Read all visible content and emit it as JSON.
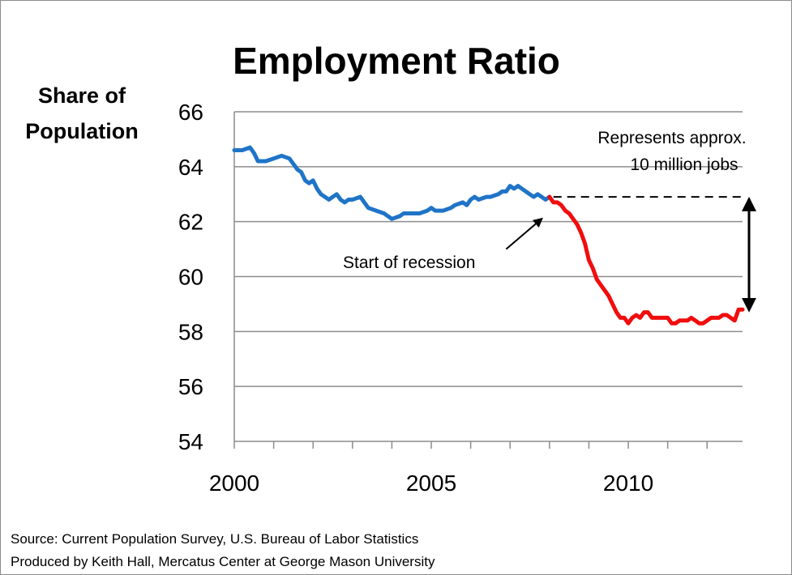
{
  "chart_data": {
    "type": "line",
    "title": "Employment Ratio",
    "ylabel_lines": [
      "Share of",
      "Population"
    ],
    "xlabel": "",
    "ylim": [
      54,
      66
    ],
    "xlim": [
      2000,
      2012.9
    ],
    "yticks": [
      "54",
      "56",
      "58",
      "60",
      "62",
      "64",
      "66"
    ],
    "xticks": [
      "2000",
      "2005",
      "2010"
    ],
    "grid": true,
    "legend": "none",
    "series": [
      {
        "color": "#1f74c7",
        "points": [
          [
            2000.0,
            64.6
          ],
          [
            2000.2,
            64.6
          ],
          [
            2000.4,
            64.7
          ],
          [
            2000.5,
            64.5
          ],
          [
            2000.6,
            64.2
          ],
          [
            2000.8,
            64.2
          ],
          [
            2001.0,
            64.3
          ],
          [
            2001.2,
            64.4
          ],
          [
            2001.4,
            64.3
          ],
          [
            2001.6,
            63.9
          ],
          [
            2001.7,
            63.8
          ],
          [
            2001.8,
            63.5
          ],
          [
            2001.9,
            63.4
          ],
          [
            2002.0,
            63.5
          ],
          [
            2002.1,
            63.2
          ],
          [
            2002.2,
            63.0
          ],
          [
            2002.3,
            62.9
          ],
          [
            2002.4,
            62.8
          ],
          [
            2002.5,
            62.9
          ],
          [
            2002.6,
            63.0
          ],
          [
            2002.7,
            62.8
          ],
          [
            2002.8,
            62.7
          ],
          [
            2002.9,
            62.8
          ],
          [
            2003.0,
            62.8
          ],
          [
            2003.2,
            62.9
          ],
          [
            2003.3,
            62.7
          ],
          [
            2003.4,
            62.5
          ],
          [
            2003.6,
            62.4
          ],
          [
            2003.8,
            62.3
          ],
          [
            2003.9,
            62.2
          ],
          [
            2004.0,
            62.1
          ],
          [
            2004.2,
            62.2
          ],
          [
            2004.3,
            62.3
          ],
          [
            2004.5,
            62.3
          ],
          [
            2004.7,
            62.3
          ],
          [
            2004.9,
            62.4
          ],
          [
            2005.0,
            62.5
          ],
          [
            2005.1,
            62.4
          ],
          [
            2005.3,
            62.4
          ],
          [
            2005.5,
            62.5
          ],
          [
            2005.6,
            62.6
          ],
          [
            2005.8,
            62.7
          ],
          [
            2005.9,
            62.6
          ],
          [
            2006.0,
            62.8
          ],
          [
            2006.1,
            62.9
          ],
          [
            2006.2,
            62.8
          ],
          [
            2006.4,
            62.9
          ],
          [
            2006.5,
            62.9
          ],
          [
            2006.7,
            63.0
          ],
          [
            2006.8,
            63.1
          ],
          [
            2006.9,
            63.1
          ],
          [
            2007.0,
            63.3
          ],
          [
            2007.1,
            63.2
          ],
          [
            2007.2,
            63.3
          ],
          [
            2007.3,
            63.2
          ],
          [
            2007.4,
            63.1
          ],
          [
            2007.5,
            63.0
          ],
          [
            2007.6,
            62.9
          ],
          [
            2007.7,
            63.0
          ],
          [
            2007.8,
            62.9
          ],
          [
            2007.9,
            62.8
          ],
          [
            2008.0,
            62.9
          ]
        ]
      },
      {
        "color": "#f10d0d",
        "points": [
          [
            2008.0,
            62.9
          ],
          [
            2008.1,
            62.7
          ],
          [
            2008.2,
            62.7
          ],
          [
            2008.3,
            62.6
          ],
          [
            2008.4,
            62.4
          ],
          [
            2008.5,
            62.3
          ],
          [
            2008.6,
            62.1
          ],
          [
            2008.7,
            61.9
          ],
          [
            2008.8,
            61.6
          ],
          [
            2008.9,
            61.2
          ],
          [
            2009.0,
            60.6
          ],
          [
            2009.1,
            60.3
          ],
          [
            2009.2,
            59.9
          ],
          [
            2009.3,
            59.7
          ],
          [
            2009.4,
            59.5
          ],
          [
            2009.5,
            59.3
          ],
          [
            2009.6,
            59.0
          ],
          [
            2009.7,
            58.7
          ],
          [
            2009.8,
            58.5
          ],
          [
            2009.9,
            58.5
          ],
          [
            2010.0,
            58.3
          ],
          [
            2010.1,
            58.5
          ],
          [
            2010.2,
            58.6
          ],
          [
            2010.3,
            58.5
          ],
          [
            2010.4,
            58.7
          ],
          [
            2010.5,
            58.7
          ],
          [
            2010.6,
            58.5
          ],
          [
            2010.8,
            58.5
          ],
          [
            2011.0,
            58.5
          ],
          [
            2011.1,
            58.3
          ],
          [
            2011.2,
            58.3
          ],
          [
            2011.3,
            58.4
          ],
          [
            2011.5,
            58.4
          ],
          [
            2011.6,
            58.5
          ],
          [
            2011.7,
            58.4
          ],
          [
            2011.8,
            58.3
          ],
          [
            2011.9,
            58.3
          ],
          [
            2012.0,
            58.4
          ],
          [
            2012.1,
            58.5
          ],
          [
            2012.3,
            58.5
          ],
          [
            2012.4,
            58.6
          ],
          [
            2012.5,
            58.6
          ],
          [
            2012.6,
            58.5
          ],
          [
            2012.7,
            58.4
          ],
          [
            2012.8,
            58.8
          ],
          [
            2012.9,
            58.8
          ]
        ]
      }
    ],
    "annotations": {
      "recession": {
        "text": "Start of recession",
        "arrow_from": [
          2006.9,
          61.0
        ],
        "arrow_to": [
          2007.8,
          62.1
        ]
      },
      "gap": {
        "text_lines": [
          "Represents approx.",
          "10 million jobs"
        ],
        "reference_level": 62.9,
        "reference_from_x": 2008.1,
        "reference_to_x": 2012.9,
        "span": [
          58.8,
          62.8
        ],
        "span_x": 2012.9
      }
    },
    "source_lines": [
      "Source: Current Population Survey, U.S. Bureau of Labor Statistics",
      "Produced by Keith Hall, Mercatus Center at George Mason University"
    ]
  }
}
